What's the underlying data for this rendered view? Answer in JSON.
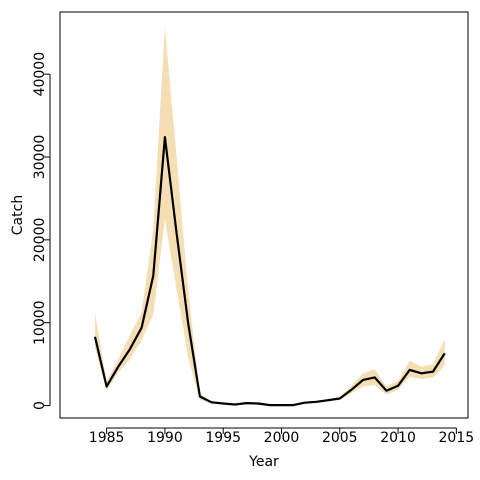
{
  "chart_data": {
    "type": "line",
    "title": "",
    "xlabel": "Year",
    "ylabel": "Catch",
    "xlim": [
      1981,
      2016
    ],
    "ylim": [
      -1500,
      47500
    ],
    "x_ticks": [
      1985,
      1990,
      1995,
      2000,
      2005,
      2010,
      2015
    ],
    "y_ticks": [
      0,
      10000,
      20000,
      30000,
      40000
    ],
    "grid": false,
    "legend": "none",
    "band_color": "#f5deb3",
    "line_color": "#000000",
    "series": [
      {
        "x": [
          1984,
          1985,
          1986,
          1987,
          1988,
          1989,
          1990,
          1991,
          1992,
          1993,
          1994,
          1995,
          1996,
          1997,
          1998,
          1999,
          2000,
          2001,
          2002,
          2003,
          2004,
          2005,
          2006,
          2007,
          2008,
          2009,
          2010,
          2011,
          2012,
          2013,
          2014
        ],
        "values": [
          8300,
          2300,
          4700,
          6800,
          9400,
          15700,
          32400,
          20800,
          9900,
          1100,
          400,
          250,
          130,
          300,
          250,
          60,
          60,
          60,
          350,
          450,
          650,
          850,
          1900,
          3100,
          3400,
          1800,
          2400,
          4300,
          3900,
          4100,
          6300
        ],
        "lower": [
          7000,
          1800,
          4000,
          5600,
          7900,
          11000,
          22500,
          14000,
          5800,
          700,
          300,
          150,
          80,
          200,
          150,
          30,
          30,
          30,
          250,
          350,
          500,
          700,
          1500,
          2300,
          2500,
          1300,
          1900,
          3500,
          3200,
          3400,
          4800
        ],
        "upper": [
          11200,
          2900,
          5600,
          8500,
          11200,
          21300,
          45700,
          30000,
          13900,
          1400,
          500,
          350,
          200,
          400,
          350,
          100,
          100,
          100,
          450,
          550,
          800,
          1000,
          2400,
          3900,
          4400,
          2300,
          3000,
          5400,
          4700,
          5000,
          8000
        ]
      }
    ]
  }
}
